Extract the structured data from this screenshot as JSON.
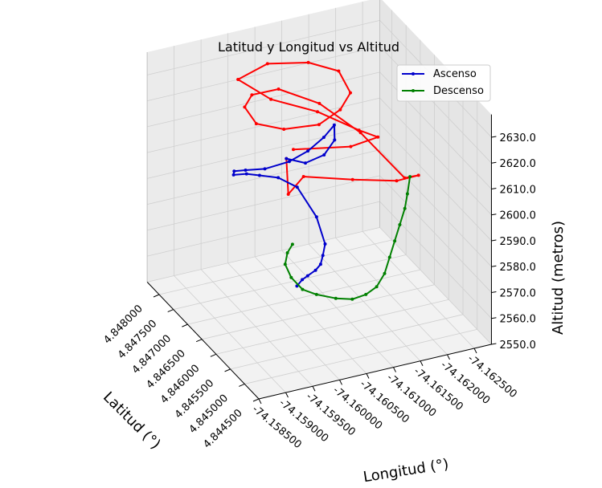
{
  "chart_data": {
    "type": "line3d",
    "title": "Latitud y Longitud vs Altitud",
    "xlabel": "Longitud (°)",
    "ylabel": "Latitud (°)",
    "zlabel": "Altitud (metros)",
    "x_ticks": [
      "-74.158500",
      "-74.159000",
      "-74.159500",
      "-74.160000",
      "-74.160500",
      "-74.161000",
      "-74.161500",
      "-74.162000",
      "-74.162500"
    ],
    "y_ticks": [
      "4.844500",
      "4.845000",
      "4.845500",
      "4.846000",
      "4.846500",
      "4.847000",
      "4.847500",
      "4.848000"
    ],
    "z_ticks": [
      "2550.0",
      "2560.0",
      "2570.0",
      "2580.0",
      "2590.0",
      "2600.0",
      "2610.0",
      "2620.0",
      "2630.0"
    ],
    "legend": {
      "position": "upper-right",
      "entries": [
        "Ascenso",
        "Descenso"
      ]
    },
    "grid": true,
    "series": [
      {
        "name": "Ascenso",
        "color": "#0000cc",
        "points": [
          [
            -74.16,
            4.846,
            2569
          ],
          [
            -74.1601,
            4.846,
            2571
          ],
          [
            -74.1602,
            4.846,
            2572
          ],
          [
            -74.1604,
            4.8461,
            2572
          ],
          [
            -74.1606,
            4.8463,
            2571
          ],
          [
            -74.1608,
            4.8466,
            2570
          ],
          [
            -74.161,
            4.8469,
            2570
          ],
          [
            -74.161,
            4.8472,
            2577
          ],
          [
            -74.1608,
            4.8475,
            2586
          ],
          [
            -74.1605,
            4.8476,
            2590
          ],
          [
            -74.1601,
            4.8475,
            2594
          ],
          [
            -74.1597,
            4.8472,
            2600
          ],
          [
            -74.1593,
            4.8469,
            2605
          ],
          [
            -74.1591,
            4.8465,
            2612
          ],
          [
            -74.1591,
            4.8461,
            2617
          ],
          [
            -74.1593,
            4.8458,
            2620
          ],
          [
            -74.1597,
            4.8457,
            2622
          ],
          [
            -74.1601,
            4.8458,
            2623
          ],
          [
            -74.1605,
            4.846,
            2624
          ],
          [
            -74.1608,
            4.8462,
            2625
          ],
          [
            -74.1607,
            4.846,
            2622
          ],
          [
            -74.1604,
            4.8458,
            2620
          ],
          [
            -74.16,
            4.8457,
            2620
          ],
          [
            -74.1597,
            4.8458,
            2622
          ]
        ]
      },
      {
        "name": "Descenso",
        "color": "#008000",
        "points": [
          [
            -74.1621,
            4.846,
            2601
          ],
          [
            -74.162,
            4.8459,
            2596
          ],
          [
            -74.1619,
            4.8458,
            2592
          ],
          [
            -74.1617,
            4.8456,
            2589
          ],
          [
            -74.1615,
            4.8454,
            2586
          ],
          [
            -74.1613,
            4.8452,
            2583
          ],
          [
            -74.1611,
            4.845,
            2580
          ],
          [
            -74.1609,
            4.8449,
            2577
          ],
          [
            -74.1607,
            4.8449,
            2575
          ],
          [
            -74.1605,
            4.845,
            2573
          ],
          [
            -74.1603,
            4.8452,
            2572
          ],
          [
            -74.1601,
            4.8455,
            2571
          ],
          [
            -74.16,
            4.8458,
            2570
          ],
          [
            -74.16,
            4.8462,
            2570
          ],
          [
            -74.1601,
            4.8466,
            2570
          ],
          [
            -74.1603,
            4.8469,
            2570
          ],
          [
            -74.1605,
            4.8471,
            2570
          ]
        ]
      },
      {
        "name": "",
        "color": "#ff0000",
        "points": [
          [
            -74.1597,
            4.8458,
            2622
          ],
          [
            -74.16,
            4.8463,
            2601
          ],
          [
            -74.1606,
            4.8469,
            2598
          ],
          [
            -74.1613,
            4.8465,
            2598
          ],
          [
            -74.1618,
            4.8459,
            2602
          ],
          [
            -74.1621,
            4.8457,
            2605
          ],
          [
            -74.162,
            4.846,
            2601
          ],
          [
            -74.1615,
            4.8466,
            2614
          ],
          [
            -74.161,
            4.8471,
            2622
          ],
          [
            -74.1604,
            4.8474,
            2627
          ],
          [
            -74.1598,
            4.8472,
            2630
          ],
          [
            -74.1594,
            4.8467,
            2633
          ],
          [
            -74.1593,
            4.8461,
            2634
          ],
          [
            -74.1596,
            4.8457,
            2635
          ],
          [
            -74.1602,
            4.8456,
            2635
          ],
          [
            -74.1607,
            4.8458,
            2636
          ],
          [
            -74.1611,
            4.8462,
            2636
          ],
          [
            -74.1612,
            4.8468,
            2637
          ],
          [
            -74.1609,
            4.8473,
            2636
          ],
          [
            -74.1603,
            4.8476,
            2635
          ],
          [
            -74.1597,
            4.8475,
            2633
          ],
          [
            -74.1601,
            4.8471,
            2628
          ],
          [
            -74.1607,
            4.8466,
            2626
          ],
          [
            -74.1611,
            4.8459,
            2625
          ],
          [
            -74.1614,
            4.8458,
            2622
          ],
          [
            -74.161,
            4.846,
            2618
          ],
          [
            -74.1602,
            4.8465,
            2615
          ]
        ]
      }
    ]
  }
}
